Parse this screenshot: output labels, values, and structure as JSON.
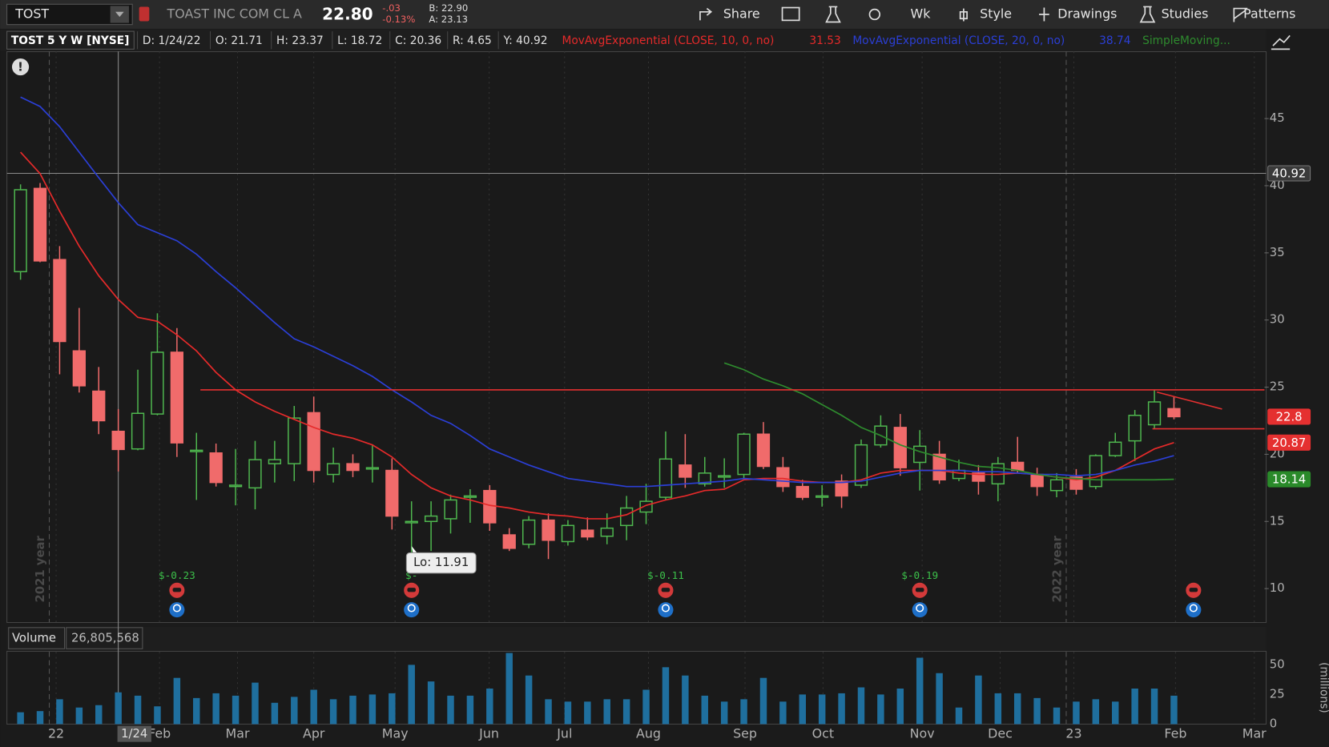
{
  "toolbar": {
    "symbol": "TOST",
    "name": "TOAST INC COM CL A",
    "last": "22.80",
    "change": "-.03",
    "change_pct": "-0.13%",
    "bid": "B: 22.90",
    "ask": "A: 23.13",
    "buttons": [
      "Share",
      "Wk",
      "Style",
      "Drawings",
      "Studies",
      "Patterns"
    ]
  },
  "header": {
    "symbol": "TOST 5 Y W [NYSE]",
    "info": [
      "D: 1/24/22",
      "O: 21.71",
      "H: 23.37",
      "L: 18.72",
      "C: 20.36",
      "R: 4.65",
      "Y: 40.92"
    ]
  },
  "chart_data": [
    {
      "type": "candlestick",
      "open": [
        33.6,
        39.8,
        34.5,
        27.7,
        24.7,
        21.71,
        20.4,
        23.0,
        27.6,
        20.2,
        20.1,
        17.6,
        17.5,
        19.3,
        19.3,
        23.1,
        18.5,
        19.3,
        18.9,
        18.8,
        14.9,
        15.0,
        15.2,
        16.8,
        17.3,
        14.0,
        13.3,
        15.1,
        13.5,
        14.35,
        13.9,
        14.7,
        15.7,
        16.8,
        19.2,
        17.8,
        18.3,
        18.5,
        21.5,
        19.0,
        17.6,
        16.8,
        18.0,
        17.7,
        20.7,
        22.0,
        19.4,
        20.0,
        18.2,
        18.6,
        17.8,
        19.4,
        18.5,
        17.3,
        18.3,
        17.6,
        19.9,
        21.0,
        22.2,
        23.4
      ],
      "high": [
        40.1,
        40.2,
        35.5,
        30.9,
        26.5,
        23.37,
        26.3,
        30.5,
        29.4,
        21.6,
        20.8,
        20.4,
        21.0,
        21.0,
        23.6,
        24.3,
        20.5,
        20.0,
        20.7,
        19.7,
        16.5,
        16.5,
        17.0,
        17.4,
        17.7,
        14.5,
        15.4,
        15.6,
        15.1,
        15.3,
        15.6,
        16.9,
        17.8,
        21.7,
        21.5,
        19.8,
        19.7,
        21.6,
        22.4,
        19.8,
        18.1,
        17.7,
        18.5,
        21.1,
        22.9,
        23.0,
        21.8,
        21.0,
        19.6,
        19.2,
        19.8,
        21.3,
        19.0,
        18.6,
        18.9,
        20.0,
        21.6,
        23.3,
        24.8,
        24.3
      ],
      "low": [
        33.0,
        34.3,
        25.96,
        24.6,
        21.5,
        18.72,
        20.3,
        22.9,
        19.8,
        16.6,
        17.6,
        16.2,
        15.9,
        17.9,
        18.0,
        17.9,
        17.9,
        18.3,
        17.9,
        14.4,
        11.91,
        12.8,
        14.1,
        14.9,
        14.3,
        12.8,
        13.0,
        12.2,
        13.2,
        13.6,
        13.3,
        13.6,
        14.8,
        16.6,
        17.5,
        17.6,
        17.5,
        18.1,
        18.9,
        17.2,
        16.6,
        16.1,
        16.0,
        17.5,
        20.5,
        18.4,
        17.3,
        17.8,
        18.0,
        17.0,
        16.5,
        18.6,
        16.9,
        16.8,
        17.0,
        17.4,
        19.8,
        19.5,
        21.9,
        22.6
      ],
      "close": [
        39.7,
        34.4,
        28.4,
        25.1,
        22.5,
        20.36,
        23.05,
        27.6,
        20.85,
        20.3,
        17.9,
        17.7,
        19.6,
        19.6,
        22.7,
        18.8,
        19.3,
        18.8,
        19.0,
        15.4,
        15.0,
        15.4,
        16.6,
        16.9,
        14.9,
        13.0,
        15.1,
        13.6,
        14.7,
        13.85,
        14.5,
        16.0,
        16.5,
        19.65,
        18.3,
        18.6,
        18.4,
        21.5,
        19.1,
        17.6,
        16.8,
        16.9,
        16.9,
        20.7,
        22.1,
        19.0,
        20.6,
        18.1,
        18.8,
        18.0,
        19.3,
        18.8,
        17.6,
        18.1,
        17.4,
        19.9,
        20.9,
        22.9,
        23.9,
        22.8
      ],
      "up_color": "#4fb84f",
      "down_color": "#f06b6b",
      "series": [
        {
          "name": "MovAvgExponential (CLOSE, 10, 0, no)",
          "current": "31.53",
          "color": "#e52a2a",
          "values": [
            42.5,
            40.9,
            38.1,
            35.5,
            33.3,
            31.53,
            30.2,
            29.9,
            28.9,
            27.7,
            26.1,
            24.8,
            23.9,
            23.2,
            22.6,
            22.0,
            21.5,
            21.2,
            20.7,
            19.8,
            18.5,
            17.5,
            16.9,
            16.6,
            16.2,
            16.0,
            15.7,
            15.5,
            15.4,
            15.2,
            15.2,
            15.5,
            16.2,
            16.6,
            16.9,
            17.3,
            17.4,
            18.1,
            18.2,
            18.2,
            18.0,
            17.9,
            17.9,
            18.1,
            18.6,
            18.8,
            18.8,
            18.8,
            18.6,
            18.5,
            18.5,
            18.6,
            18.5,
            18.3,
            18.1,
            18.3,
            18.8,
            19.6,
            20.4,
            20.87
          ]
        },
        {
          "name": "MovAvgExponential (CLOSE, 20, 0, no)",
          "current": "38.74",
          "color": "#2b3fd6",
          "values": [
            46.6,
            45.9,
            44.4,
            42.5,
            40.6,
            38.74,
            37.1,
            36.5,
            35.9,
            34.9,
            33.6,
            32.4,
            31.1,
            29.8,
            28.6,
            28.0,
            27.3,
            26.6,
            25.8,
            24.8,
            23.9,
            22.9,
            22.3,
            21.4,
            20.4,
            19.8,
            19.2,
            18.7,
            18.2,
            18.0,
            17.8,
            17.6,
            17.6,
            17.7,
            17.8,
            17.9,
            18.0,
            18.2,
            18.1,
            18.0,
            17.9,
            17.9,
            17.9,
            18.0,
            18.3,
            18.6,
            18.8,
            18.8,
            18.8,
            18.7,
            18.7,
            18.6,
            18.5,
            18.5,
            18.4,
            18.5,
            18.8,
            19.2,
            19.5,
            19.9
          ]
        },
        {
          "name": "SimpleMoving...",
          "color": "#2e8b2e",
          "values": [
            null,
            null,
            null,
            null,
            null,
            null,
            null,
            null,
            null,
            null,
            null,
            null,
            null,
            null,
            null,
            null,
            null,
            null,
            null,
            null,
            null,
            null,
            null,
            null,
            null,
            null,
            null,
            null,
            null,
            null,
            null,
            null,
            null,
            null,
            null,
            null,
            26.8,
            26.3,
            25.6,
            25.1,
            24.5,
            23.7,
            22.9,
            22.0,
            21.4,
            20.7,
            20.2,
            19.8,
            19.4,
            19.1,
            19.0,
            18.8,
            18.5,
            18.3,
            18.2,
            18.1,
            18.1,
            18.1,
            18.1,
            18.14
          ]
        }
      ],
      "xlim": [
        -0.61,
        63.63
      ],
      "ylim": [
        7.5,
        50
      ],
      "yticks": [
        10,
        15,
        20,
        25,
        30,
        35,
        40,
        45
      ],
      "xticks": [
        {
          "value": 1.82,
          "label": "22"
        },
        {
          "value": 7.11,
          "label": "Feb"
        },
        {
          "value": 11.1,
          "label": "Mar"
        },
        {
          "value": 15.0,
          "label": "Apr"
        },
        {
          "value": 19.16,
          "label": "May"
        },
        {
          "value": 23.97,
          "label": "Jun"
        },
        {
          "value": 27.83,
          "label": "Jul"
        },
        {
          "value": 32.12,
          "label": "Aug"
        },
        {
          "value": 37.06,
          "label": "Sep"
        },
        {
          "value": 41.05,
          "label": "Oct"
        },
        {
          "value": 46.12,
          "label": "Nov"
        },
        {
          "value": 50.11,
          "label": "Dec"
        },
        {
          "value": 53.88,
          "label": "23"
        },
        {
          "value": 59.08,
          "label": "Feb"
        },
        {
          "value": 63.11,
          "label": "Mar"
        }
      ],
      "grid": true,
      "year_lines": [
        {
          "x": 1.47,
          "label": "2021 year"
        },
        {
          "x": 53.49,
          "label": "2022 year"
        }
      ],
      "drawings": [
        {
          "x": [
            9.2,
            63.63
          ],
          "y": [
            24.8,
            24.8
          ]
        },
        {
          "x": [
            57.9,
            63.63
          ],
          "y": [
            21.9,
            21.9
          ]
        },
        {
          "x": [
            58.13,
            61.46
          ],
          "y": [
            24.63,
            23.37
          ]
        }
      ],
      "drawing_color": "#e53030",
      "price_tags": [
        {
          "value": 40.92,
          "color": "#3a3a3a"
        },
        {
          "value": 22.8,
          "color": "#e53030"
        },
        {
          "value": 20.87,
          "color": "#e53030"
        },
        {
          "value": 18.14,
          "color": "#2a8a2a"
        }
      ],
      "crosshair": {
        "x": 5,
        "y": 40.92,
        "x_label": "1/24"
      },
      "tooltip": {
        "x": 20,
        "y": 11.91,
        "label": "Lo: 11.91"
      },
      "events": [
        {
          "x": 8,
          "label": "$-0.23"
        },
        {
          "x": 20,
          "label": "$-"
        },
        {
          "x": 33,
          "label": "$-0.11"
        },
        {
          "x": 46,
          "label": "$-0.19"
        },
        {
          "x": 60
        }
      ]
    },
    {
      "type": "bar",
      "title": "Volume",
      "current": "26,805,568",
      "axis_label": "(millions)",
      "color": "#1f6f9e",
      "values": [
        10,
        11,
        21,
        14,
        16,
        26.805568,
        24,
        15,
        39,
        22,
        26,
        24,
        35,
        18,
        23,
        29,
        21,
        24,
        25,
        26,
        50,
        36,
        24,
        24,
        30,
        60,
        41,
        21,
        19,
        19,
        21,
        21,
        29,
        48,
        41,
        24,
        19,
        21,
        39,
        19,
        25,
        25,
        26,
        31,
        25,
        30,
        56,
        43,
        14,
        41,
        26,
        26,
        22,
        14,
        19,
        21,
        19,
        30,
        30,
        24
      ],
      "xlim": [
        -0.61,
        63.63
      ],
      "ylim": [
        0,
        61
      ],
      "yticks": [
        0,
        25,
        50
      ]
    }
  ]
}
